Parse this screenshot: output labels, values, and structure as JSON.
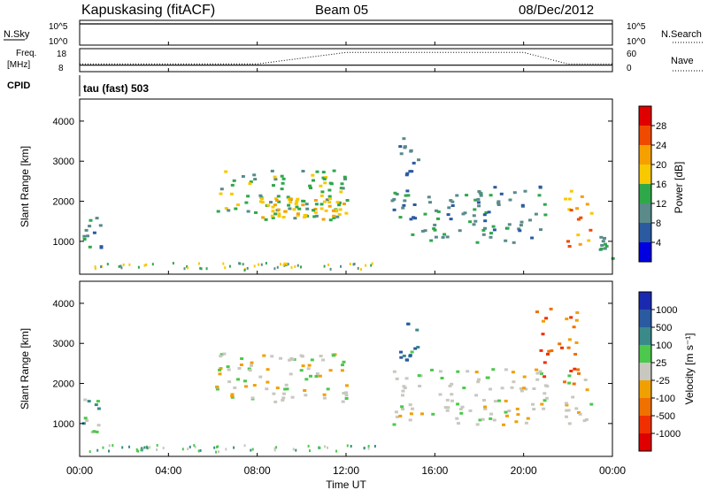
{
  "header": {
    "station": "Kapuskasing (fitACF)",
    "beam": "Beam 05",
    "date": "08/Dec/2012"
  },
  "top_panels": {
    "nsky_label": "N.Sky",
    "nsky_ticks": [
      "10^5",
      "10^0"
    ],
    "nsearch_label": "N.Search",
    "nsearch_ticks": [
      "10^5",
      "10^0"
    ],
    "freq_label": "Freq.",
    "freq_unit": "[MHz]",
    "freq_ticks": [
      "18",
      "8"
    ],
    "nave_label": "Nave",
    "nave_ticks": [
      "60",
      "0"
    ],
    "cpid_label": "CPID",
    "cpid_value": "tau (fast) 503"
  },
  "x_axis": {
    "label": "Time UT",
    "ticks": [
      "00:00",
      "04:00",
      "08:00",
      "12:00",
      "16:00",
      "20:00",
      "00:00"
    ]
  },
  "power_colorbar": {
    "label": "Power [dB]",
    "ticks": [
      "28",
      "24",
      "20",
      "16",
      "12",
      "8",
      "4"
    ],
    "colors": [
      "#e00000",
      "#f04a00",
      "#f6a000",
      "#f8c800",
      "#2fa84a",
      "#5a8a8a",
      "#2a5aa0",
      "#0000e0"
    ]
  },
  "velocity_colorbar": {
    "label": "Velocity [m s⁻¹]",
    "ticks": [
      "1000",
      "500",
      "100",
      "25",
      "-25",
      "-100",
      "-500",
      "-1000"
    ],
    "colors": [
      "#1a2ab0",
      "#2a5aa0",
      "#3a8a8a",
      "#4cc84c",
      "#c8c8c0",
      "#f0a000",
      "#f07000",
      "#f03000",
      "#e00000"
    ]
  },
  "chart_data": [
    {
      "type": "line",
      "title": "N.Sky / N.Search",
      "x": [
        "00:00",
        "01:00",
        "02:00",
        "04:00",
        "06:00",
        "08:00",
        "10:00",
        "12:00",
        "14:00",
        "16:00",
        "18:00",
        "20:00",
        "22:00",
        "23:00",
        "24:00"
      ],
      "series": [
        {
          "name": "N.Sky",
          "values": [
            100000,
            100000,
            100000,
            100000,
            100000,
            100000,
            100000,
            100000,
            100000,
            100000,
            100000,
            100000,
            100000,
            100000,
            100000
          ]
        },
        {
          "name": "N.Search",
          "values": [
            100000,
            100000,
            100000,
            100000,
            100000,
            100000,
            100000,
            100000,
            100000,
            100000,
            100000,
            100000,
            100000,
            100000,
            100000
          ]
        }
      ]
    },
    {
      "type": "line",
      "title": "Freq. / Nave",
      "x": [
        "00:00",
        "04:00",
        "08:00",
        "12:00",
        "16:00",
        "20:00",
        "22:00",
        "24:00"
      ],
      "series": [
        {
          "name": "Freq.",
          "values": [
            10.8,
            10.8,
            10.8,
            10.8,
            10.8,
            10.8,
            10.8,
            10.8
          ]
        },
        {
          "name": "Nave",
          "values": [
            20,
            20,
            20,
            50,
            50,
            50,
            20,
            20
          ]
        }
      ]
    },
    {
      "type": "heatmap",
      "title": "Power",
      "xlabel": "Time UT",
      "ylabel": "Slant Range [km]",
      "yticks": [
        "1000",
        "2000",
        "3000",
        "4000"
      ],
      "ylim": [
        180,
        4550
      ],
      "xlim": [
        0,
        24
      ],
      "cbar_label": "Power [dB]",
      "blobs": [
        {
          "t0": 0.05,
          "t1": 0.9,
          "r0": 700,
          "r1": 1650,
          "level": 2
        },
        {
          "t0": 6.1,
          "t1": 12.0,
          "r0": 1550,
          "r1": 2800,
          "level": 3
        },
        {
          "t0": 8.0,
          "t1": 12.0,
          "r0": 1550,
          "r1": 2100,
          "level": 4
        },
        {
          "t0": 14.0,
          "t1": 21.0,
          "r0": 1000,
          "r1": 2400,
          "level": 2
        },
        {
          "t0": 14.3,
          "t1": 15.2,
          "r0": 2500,
          "r1": 3600,
          "level": 2
        },
        {
          "t0": 21.8,
          "t1": 23.0,
          "r0": 900,
          "r1": 2300,
          "level": 5
        },
        {
          "t0": 23.3,
          "t1": 24.0,
          "r0": 600,
          "r1": 1200,
          "level": 2
        }
      ]
    },
    {
      "type": "heatmap",
      "title": "Velocity",
      "xlabel": "Time UT",
      "ylabel": "Slant Range [km]",
      "yticks": [
        "1000",
        "2000",
        "3000",
        "4000"
      ],
      "ylim": [
        180,
        4550
      ],
      "xlim": [
        0,
        24
      ],
      "cbar_label": "Velocity [m s⁻¹]",
      "blobs": [
        {
          "t0": 0.05,
          "t1": 0.9,
          "r0": 700,
          "r1": 1650,
          "level": 3
        },
        {
          "t0": 6.1,
          "t1": 12.0,
          "r0": 1550,
          "r1": 2800,
          "level": 4
        },
        {
          "t0": 14.0,
          "t1": 21.0,
          "r0": 1000,
          "r1": 2400,
          "level": 4
        },
        {
          "t0": 14.3,
          "t1": 15.2,
          "r0": 2500,
          "r1": 3600,
          "level": 2
        },
        {
          "t0": 21.8,
          "t1": 23.0,
          "r0": 900,
          "r1": 2300,
          "level": 4
        },
        {
          "t0": 20.5,
          "t1": 22.5,
          "r0": 2000,
          "r1": 3900,
          "level": 6
        }
      ]
    }
  ]
}
